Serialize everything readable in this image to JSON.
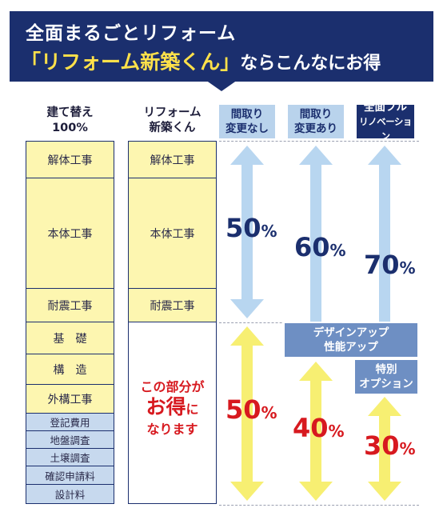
{
  "header": {
    "title": "全面まるごとリフォーム",
    "highlight": "「リフォーム新築くん」",
    "tail": "ならこんなにお得"
  },
  "columns": {
    "rebuild": {
      "line1": "建て替え",
      "line2": "100%"
    },
    "reform": {
      "line1": "リフォーム",
      "line2": "新築くん"
    },
    "options": [
      {
        "line1": "間取り",
        "line2": "変更なし"
      },
      {
        "line1": "間取り",
        "line2": "変更あり"
      },
      {
        "line1": "全面フル",
        "line2": "リノベーション"
      }
    ]
  },
  "rebuild_items": [
    "解体工事",
    "本体工事",
    "耐震工事",
    "基　礎",
    "構　造",
    "外構工事"
  ],
  "rebuild_fees": [
    "登記費用",
    "地盤調査",
    "土壌調査",
    "確認申請料",
    "設計料"
  ],
  "reform_items": [
    "解体工事",
    "本体工事",
    "耐震工事"
  ],
  "savings_text": {
    "line1": "この部分が",
    "line2a": "お得",
    "line2b": "に",
    "line3": "なります"
  },
  "upper_percent": [
    {
      "num": "50",
      "sign": "%"
    },
    {
      "num": "60",
      "sign": "%"
    },
    {
      "num": "70",
      "sign": "%"
    }
  ],
  "lower_percent": [
    {
      "num": "50",
      "sign": "%"
    },
    {
      "num": "40",
      "sign": "%"
    },
    {
      "num": "30",
      "sign": "%"
    }
  ],
  "boxes": {
    "design": {
      "line1": "デザインアップ",
      "line2": "性能アップ"
    },
    "special": {
      "line1": "特別",
      "line2": "オプション"
    }
  },
  "colors": {
    "navy": "#1b2f6e",
    "yellow": "#fdf6b0",
    "light_blue": "#b9d3ec",
    "red": "#d7191f",
    "arrow_blue": "#b8d6f0",
    "arrow_yellow": "#f7ef72"
  }
}
